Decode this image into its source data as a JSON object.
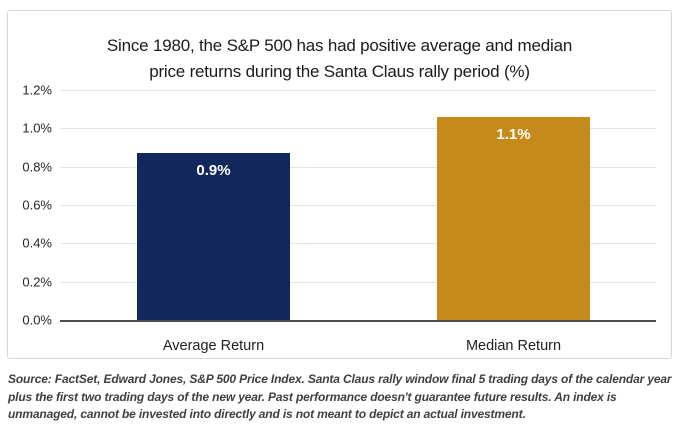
{
  "header": {
    "title_line1": "Since 1980, the S&P 500 has had positive average and median",
    "title_line2": "price returns during the Santa Claus rally period (%)"
  },
  "chart_data": {
    "type": "bar",
    "title": "Since 1980, the S&P 500 has had positive average and median price returns during the Santa Claus rally period (%)",
    "categories": [
      "Average Return",
      "Median Return"
    ],
    "values": [
      0.87,
      1.06
    ],
    "data_labels": [
      "0.9%",
      "1.1%"
    ],
    "bar_colors": [
      "#12275c",
      "#c6891b"
    ],
    "xlabel": "",
    "ylabel": "",
    "ylim": [
      0,
      1.2
    ],
    "yticks": [
      "1.2%",
      "1.0%",
      "0.8%",
      "0.6%",
      "0.4%",
      "0.2%",
      "0.0%"
    ],
    "grid": "horizontal",
    "legend": "none"
  },
  "footer": {
    "source": "Source: FactSet, Edward Jones, S&P 500 Price Index. Santa Claus rally window final 5 trading days of the calendar year plus the first two trading days of the new year. Past performance doesn't guarantee future results. An index is unmanaged, cannot be invested into directly and is not meant to depict an actual investment."
  },
  "colors": {
    "navy": "#12275c",
    "gold": "#c6891b",
    "gridline": "#e4e4e4",
    "axis_line": "#4d4d4d",
    "frame_border": "#d7d7d7",
    "title_text": "#1b1b1b",
    "source_text": "#3f3f3f"
  }
}
